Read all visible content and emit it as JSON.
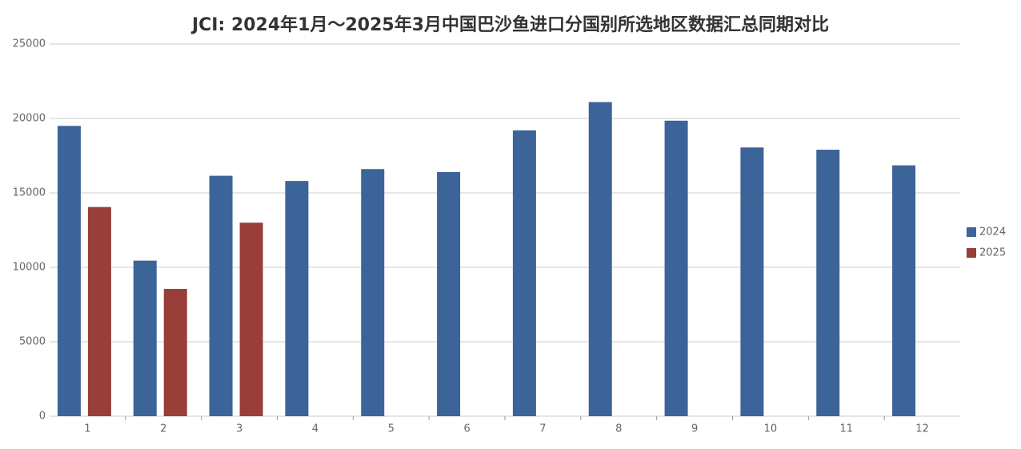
{
  "chart_data": {
    "type": "bar",
    "title": "JCI: 2024年1月～2025年3月中国巴沙鱼进口分国别所选地区数据汇总同期对比",
    "categories": [
      "1",
      "2",
      "3",
      "4",
      "5",
      "6",
      "7",
      "8",
      "9",
      "10",
      "11",
      "12"
    ],
    "series": [
      {
        "name": "2024",
        "color": "#3d6499",
        "values": [
          19500,
          10450,
          16150,
          15800,
          16600,
          16400,
          19200,
          21100,
          19850,
          18050,
          17900,
          16850
        ]
      },
      {
        "name": "2025",
        "color": "#9a3e3a",
        "values": [
          14050,
          8550,
          13000,
          null,
          null,
          null,
          null,
          null,
          null,
          null,
          null,
          null
        ]
      }
    ],
    "ylim": [
      0,
      25000
    ],
    "yticks": [
      0,
      5000,
      10000,
      15000,
      20000,
      25000
    ],
    "grid": true,
    "legend": "right"
  }
}
